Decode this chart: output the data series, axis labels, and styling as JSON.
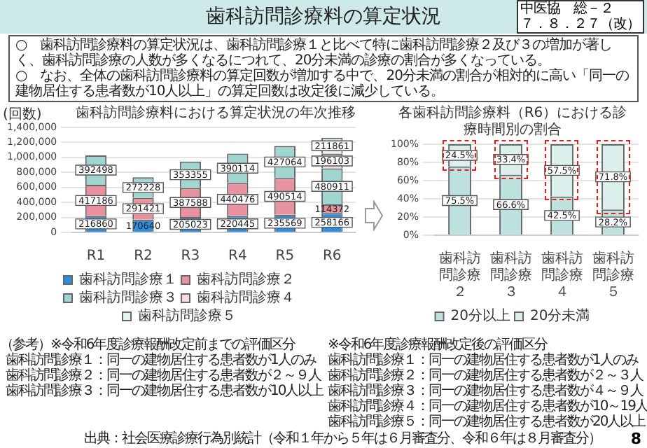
{
  "chart_data": [
    {
      "type": "other",
      "title": "歯科訪問診療料の算定状況",
      "annotations": [
        "中医協　総－２",
        "７．８．２７（改）",
        "○　歯科訪問診療料の算定状況は、歯科訪問診療１と比べて特に歯科訪問診療２及び３の増加が著しく、歯科訪問診療の人数が多くなるにつれて、20分未満の診療の割合が多くなっている。",
        "○　なお、全体の歯科訪問診療料の算定回数が増加する中で、20分未満の割合が相対的に高い「同一の建物居住する患者数が10人以上」の算定回数は改定後に減少している。"
      ]
    },
    {
      "type": "bar",
      "title": "歯科訪問診療料における算定状況の年次推移",
      "ylabel": "(回数)",
      "categories": [
        "R1",
        "R2",
        "R3",
        "R4",
        "R5",
        "R6"
      ],
      "stacked": true,
      "series": [
        {
          "name": "歯科訪問診療１",
          "color": "#2e8fe0",
          "values": [
            216860,
            170640,
            205023,
            220445,
            235569,
            258166
          ]
        },
        {
          "name": "歯科訪問診療２",
          "color": "#e8919f",
          "values": [
            417186,
            291421,
            387588,
            440476,
            490514,
            114372
          ]
        },
        {
          "name": "歯科訪問診療３",
          "color": "#a0d5d0",
          "values": [
            392498,
            272228,
            353355,
            390114,
            427064,
            480911
          ]
        },
        {
          "name": "歯科訪問診療４",
          "color": "#f6dce1",
          "values": [
            null,
            null,
            null,
            null,
            null,
            196103
          ]
        },
        {
          "name": "歯科訪問診療５",
          "color": "#e3f4f2",
          "values": [
            null,
            null,
            null,
            null,
            null,
            211861
          ]
        }
      ],
      "ylim": [
        0,
        1400000
      ],
      "yticks": [
        0,
        {
          "value": 200000,
          "label": "200,000"
        },
        {
          "value": 400000,
          "label": "400,000"
        },
        {
          "value": 600000,
          "label": "600,000"
        },
        {
          "value": 800000,
          "label": "800,000"
        },
        {
          "value": 1000000,
          "label": "1,000,000"
        },
        {
          "value": 1200000,
          "label": "1,200,000"
        },
        {
          "value": 1400000,
          "label": "1,400,000"
        }
      ],
      "grid": "y",
      "legend": "bottom",
      "data_labels": true
    },
    {
      "type": "bar",
      "title": "各歯科訪問診療料（R6）における診療時間別の割合",
      "categories": [
        "歯科訪問診療２",
        "歯科訪問診療３",
        "歯科訪問診療４",
        "歯科訪問診療５"
      ],
      "stacked": true,
      "series": [
        {
          "name": "20分以上",
          "color": "#bde2de",
          "values": [
            75.5,
            66.6,
            42.5,
            28.2
          ],
          "value_labels": [
            "75.5%",
            "66.6%",
            "42.5%",
            "28.2%"
          ]
        },
        {
          "name": "20分未満",
          "color": "#dcefed",
          "values": [
            24.5,
            33.4,
            57.5,
            71.8
          ],
          "value_labels": [
            "24.5%",
            "33.4%",
            "57.5%",
            "71.8%"
          ]
        }
      ],
      "ylim": [
        0,
        100
      ],
      "yticks": [
        {
          "value": 0,
          "label": "0%"
        },
        {
          "value": 20,
          "label": "20%"
        },
        {
          "value": 40,
          "label": "40%"
        },
        {
          "value": 60,
          "label": "60%"
        },
        {
          "value": 80,
          "label": "80%"
        },
        {
          "value": 100,
          "label": "100%"
        }
      ],
      "grid": "y",
      "legend": "bottom"
    },
    {
      "type": "other",
      "annotations": [
        "（参考）",
        "※令和6年度診療報酬改定前までの評価区分",
        "歯科訪問診療１：同一の建物居住する患者数が1人のみ",
        "歯科訪問診療２：同一の建物居住する患者数が２～９人",
        "歯科訪問診療３：同一の建物居住する患者数が10人以上",
        "※令和6年度診療報酬改定後の評価区分",
        "歯科訪問診療１：同一の建物居住する患者数が1人のみ",
        "歯科訪問診療２：同一の建物居住する患者数が２～３人",
        "歯科訪問診療３：同一の建物居住する患者数が４～９人",
        "歯科訪問診療４：同一の建物居住する患者数が10～19人",
        "歯科訪問診療５：同一の建物居住する患者数が20人以上",
        "出典：社会医療診療行為別統計（令和１年から５年は６月審査分、令和６年は８月審査分）",
        "8"
      ]
    }
  ]
}
